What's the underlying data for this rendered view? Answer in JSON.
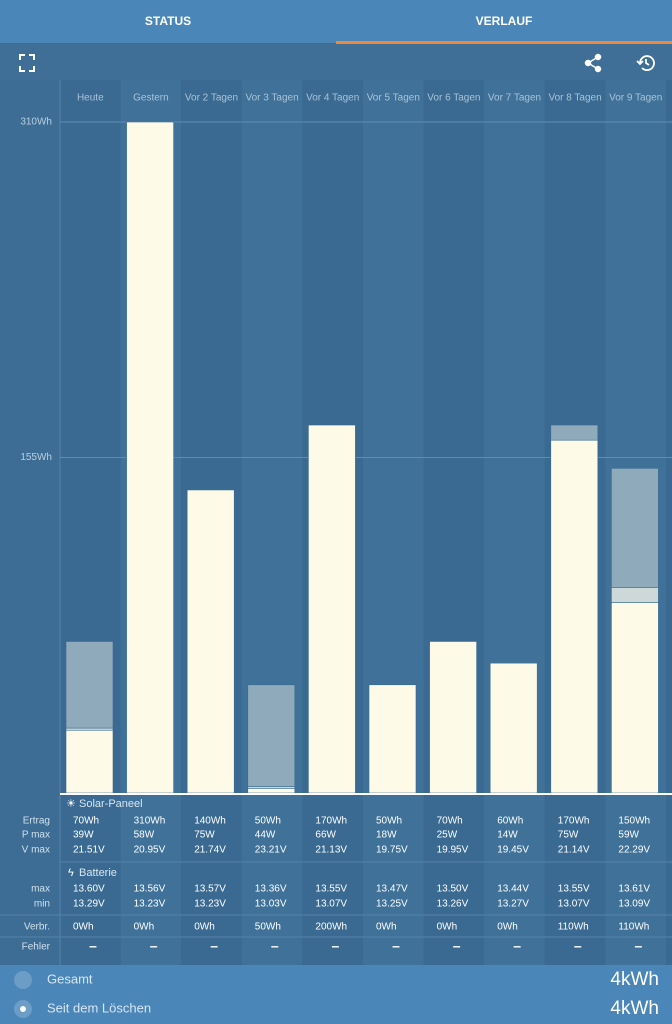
{
  "tabs": [
    "STATUS",
    "VERLAUF"
  ],
  "chart_data": {
    "type": "bar",
    "categories": [
      "Heute",
      "Gestern",
      "Vor 2 Tagen",
      "Vor 3 Tagen",
      "Vor 4 Tagen",
      "Vor 5 Tagen",
      "Vor 6 Tagen",
      "Vor 7 Tagen",
      "Vor 8 Tagen",
      "Vor 9 Tagen"
    ],
    "series": [
      {
        "color": "#fdfbe8",
        "values": [
          29,
          310,
          140,
          2,
          170,
          50,
          70,
          60,
          163,
          88
        ]
      },
      {
        "color": "#cdd9d8",
        "values": [
          1,
          0,
          0,
          1,
          0,
          0,
          0,
          0,
          0,
          7
        ]
      },
      {
        "color": "#8faabb",
        "values": [
          40,
          0,
          0,
          47,
          0,
          0,
          0,
          0,
          7,
          55
        ]
      }
    ],
    "ylim": [
      0,
      310
    ],
    "yticks": [
      {
        "value": 155,
        "label": "155Wh"
      },
      {
        "value": 310,
        "label": "310Wh"
      }
    ],
    "grid": true
  },
  "table": {
    "solar": {
      "title": "Solar-Paneel",
      "rows": [
        {
          "label": "Ertrag",
          "values": [
            "70Wh",
            "310Wh",
            "140Wh",
            "50Wh",
            "170Wh",
            "50Wh",
            "70Wh",
            "60Wh",
            "170Wh",
            "150Wh"
          ]
        },
        {
          "label": "P max",
          "values": [
            "39W",
            "58W",
            "75W",
            "44W",
            "66W",
            "18W",
            "25W",
            "14W",
            "75W",
            "59W"
          ]
        },
        {
          "label": "V max",
          "values": [
            "21.51V",
            "20.95V",
            "21.74V",
            "23.21V",
            "21.13V",
            "19.75V",
            "19.95V",
            "19.45V",
            "21.14V",
            "22.29V"
          ]
        }
      ]
    },
    "battery": {
      "title": "Batterie",
      "rows": [
        {
          "label": "max",
          "values": [
            "13.60V",
            "13.56V",
            "13.57V",
            "13.36V",
            "13.55V",
            "13.47V",
            "13.50V",
            "13.44V",
            "13.55V",
            "13.61V"
          ]
        },
        {
          "label": "min",
          "values": [
            "13.29V",
            "13.23V",
            "13.23V",
            "13.03V",
            "13.07V",
            "13.25V",
            "13.26V",
            "13.27V",
            "13.07V",
            "13.09V"
          ]
        }
      ]
    },
    "other_rows": [
      {
        "label": "Verbr.",
        "values": [
          "0Wh",
          "0Wh",
          "0Wh",
          "50Wh",
          "200Wh",
          "0Wh",
          "0Wh",
          "0Wh",
          "110Wh",
          "110Wh"
        ]
      },
      {
        "label": "Fehler",
        "values": [
          "–",
          "–",
          "–",
          "–",
          "–",
          "–",
          "–",
          "–",
          "–",
          "–"
        ]
      }
    ]
  },
  "footer": [
    {
      "label": "Gesamt",
      "value": "4kWh"
    },
    {
      "label": "Seit dem Löschen",
      "value": "4kWh"
    }
  ]
}
